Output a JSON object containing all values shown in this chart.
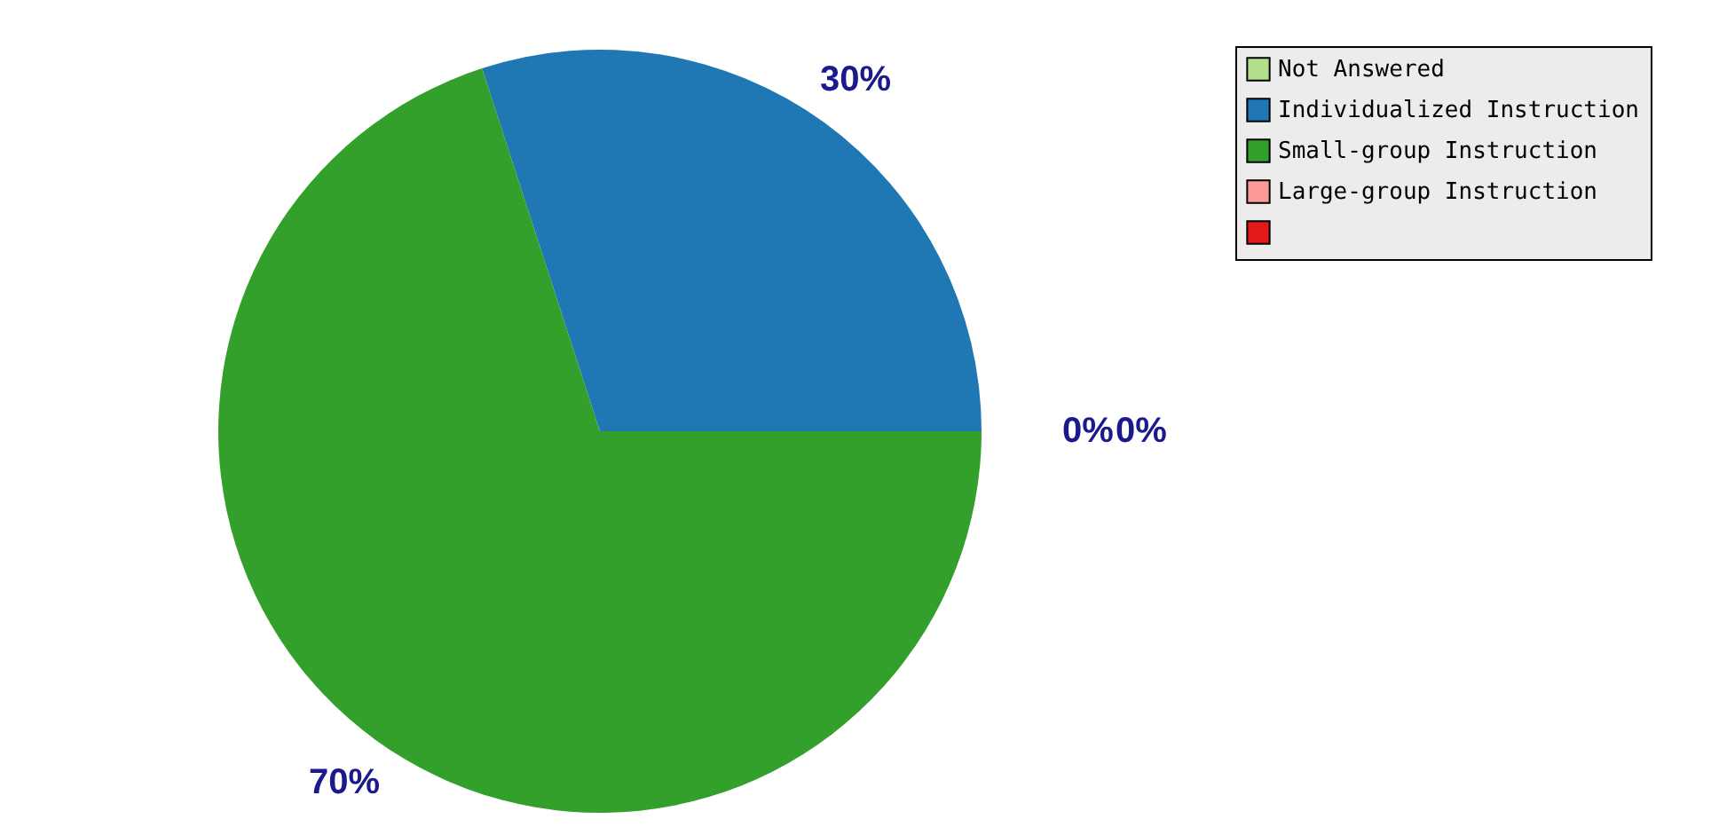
{
  "chart_data": {
    "type": "pie",
    "categories": [
      "Not Answered",
      "Individualized Instruction",
      "Small-group Instruction",
      "Large-group Instruction",
      null
    ],
    "values": [
      0,
      30,
      70,
      0,
      0
    ],
    "colors": [
      "#b2df8a",
      "#1f78b4",
      "#33a02c",
      "#fb9a99",
      "#e31a1c"
    ],
    "value_labels": [
      null,
      "30%",
      "70%",
      "0%",
      "0%"
    ],
    "legend": "top right"
  }
}
